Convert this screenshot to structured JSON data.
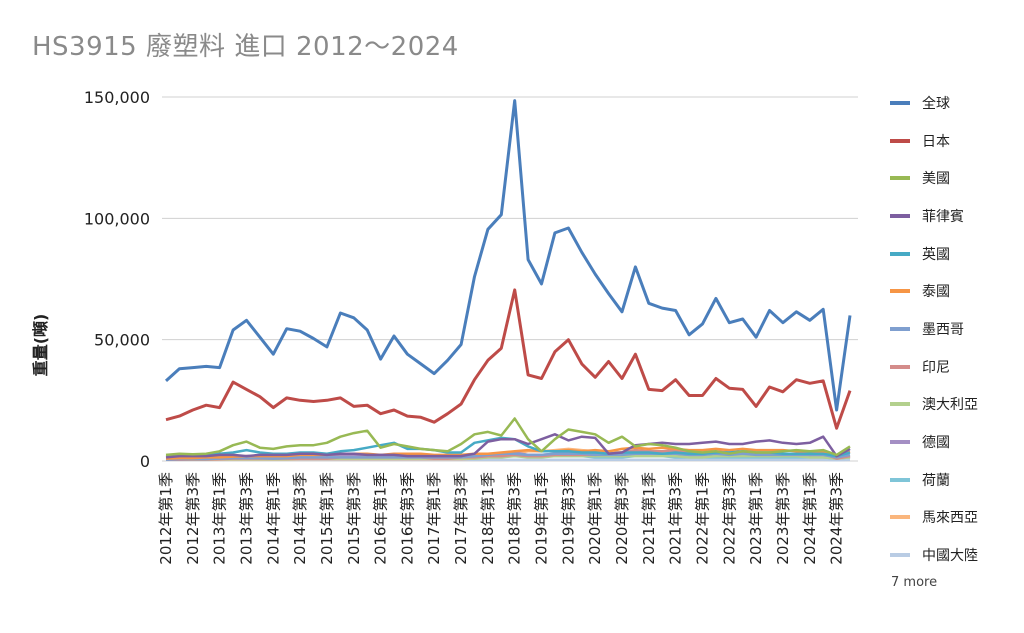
{
  "chart_data": {
    "type": "line",
    "title": "HS3915 廢塑料 進口 2012～2024",
    "ylabel": "重量(噸)",
    "xlabel": "",
    "ylim": [
      0,
      150000
    ],
    "yticks": [
      "0",
      "50,000",
      "100,000",
      "150,000"
    ],
    "ytick_values": [
      0,
      50000,
      100000,
      150000
    ],
    "grid": true,
    "legend_position": "right",
    "more_label": "7 more",
    "x": [
      "2012年第1季",
      "2012年第2季",
      "2012年第3季",
      "2012年第4季",
      "2013年第1季",
      "2013年第2季",
      "2013年第3季",
      "2013年第4季",
      "2014年第1季",
      "2014年第2季",
      "2014年第3季",
      "2014年第4季",
      "2015年第1季",
      "2015年第2季",
      "2015年第3季",
      "2015年第4季",
      "2016年第1季",
      "2016年第2季",
      "2016年第3季",
      "2016年第4季",
      "2017年第1季",
      "2017年第2季",
      "2017年第3季",
      "2017年第4季",
      "2018年第1季",
      "2018年第2季",
      "2018年第3季",
      "2018年第4季",
      "2019年第1季",
      "2019年第2季",
      "2019年第3季",
      "2019年第4季",
      "2020年第1季",
      "2020年第2季",
      "2020年第3季",
      "2020年第4季",
      "2021年第1季",
      "2021年第2季",
      "2021年第3季",
      "2021年第4季",
      "2022年第1季",
      "2022年第2季",
      "2022年第3季",
      "2022年第4季",
      "2023年第1季",
      "2023年第2季",
      "2023年第3季",
      "2023年第4季",
      "2024年第1季",
      "2024年第2季",
      "2024年第3季",
      "2024年第4季"
    ],
    "tick_labels": [
      "2012年第1季",
      "2012年第3季",
      "2013年第1季",
      "2013年第3季",
      "2014年第1季",
      "2014年第3季",
      "2015年第1季",
      "2015年第3季",
      "2016年第1季",
      "2016年第3季",
      "2017年第1季",
      "2017年第3季",
      "2018年第1季",
      "2018年第3季",
      "2019年第1季",
      "2019年第3季",
      "2020年第1季",
      "2020年第3季",
      "2021年第1季",
      "2021年第3季",
      "2022年第1季",
      "2022年第3季",
      "2023年第1季",
      "2023年第3季",
      "2024年第1季",
      "2024年第3季"
    ],
    "series": [
      {
        "name": "全球",
        "color": "#4a7ebb",
        "values": [
          33000,
          38000,
          38500,
          39000,
          38500,
          54000,
          58000,
          51000,
          44000,
          54500,
          53500,
          50500,
          47000,
          61000,
          59000,
          54000,
          42000,
          51500,
          44000,
          40000,
          36000,
          41500,
          48000,
          76000,
          95500,
          101500,
          148500,
          83000,
          73000,
          94000,
          96000,
          86000,
          77000,
          69000,
          61500,
          80000,
          65000,
          63000,
          62000,
          52000,
          56500,
          67000,
          57000,
          58500,
          51000,
          62000,
          57000,
          61500,
          58000,
          62500,
          21000,
          60000
        ]
      },
      {
        "name": "日本",
        "color": "#be4b48",
        "values": [
          17000,
          18500,
          21000,
          23000,
          22000,
          32500,
          29500,
          26500,
          22000,
          26000,
          25000,
          24500,
          25000,
          26000,
          22500,
          23000,
          19500,
          21000,
          18500,
          18000,
          16000,
          19500,
          23500,
          33500,
          41500,
          46500,
          70500,
          35500,
          34000,
          45000,
          50000,
          40000,
          34500,
          41000,
          34000,
          44000,
          29500,
          29000,
          33500,
          27000,
          27000,
          34000,
          30000,
          29500,
          22500,
          30500,
          28500,
          33500,
          32000,
          33000,
          13500,
          29000
        ]
      },
      {
        "name": "美國",
        "color": "#98b954",
        "values": [
          2500,
          3000,
          2800,
          3000,
          4000,
          6500,
          8000,
          5500,
          5000,
          6000,
          6500,
          6500,
          7500,
          10000,
          11500,
          12500,
          5500,
          7000,
          6000,
          5000,
          4500,
          4000,
          7000,
          11000,
          12000,
          10500,
          17500,
          9000,
          4000,
          9000,
          13000,
          12000,
          11000,
          7500,
          10000,
          6000,
          7000,
          6500,
          5500,
          4000,
          3500,
          4000,
          3000,
          4000,
          3500,
          3500,
          4000,
          4500,
          4000,
          4500,
          2500,
          6000
        ]
      },
      {
        "name": "菲律賓",
        "color": "#7d5fa0",
        "values": [
          1500,
          2000,
          2000,
          2000,
          2500,
          2500,
          2000,
          2500,
          2500,
          2500,
          3000,
          3000,
          2500,
          3000,
          3000,
          2500,
          2500,
          2500,
          2000,
          2000,
          2000,
          2000,
          2000,
          3000,
          8000,
          9000,
          9000,
          7000,
          9000,
          11000,
          8500,
          10000,
          9500,
          3000,
          3500,
          6500,
          7000,
          7500,
          7000,
          7000,
          7500,
          8000,
          7000,
          7000,
          8000,
          8500,
          7500,
          7000,
          7500,
          10000,
          2000,
          5000
        ]
      },
      {
        "name": "英國",
        "color": "#46aac5",
        "values": [
          2000,
          2500,
          2500,
          2500,
          3000,
          3500,
          4500,
          3500,
          3000,
          3000,
          3500,
          3500,
          3000,
          4000,
          4500,
          5500,
          6500,
          7500,
          5000,
          5000,
          4500,
          3500,
          3500,
          7500,
          8500,
          9500,
          9000,
          6000,
          4000,
          4000,
          4000,
          3500,
          3500,
          3000,
          3500,
          3500,
          3500,
          3000,
          3500,
          3000,
          3000,
          3500,
          3500,
          4000,
          3500,
          3500,
          3000,
          3000,
          3000,
          3000,
          2000,
          3500
        ]
      },
      {
        "name": "泰國",
        "color": "#f69545",
        "values": [
          1000,
          1200,
          1200,
          1500,
          1500,
          1800,
          2000,
          2000,
          2000,
          2000,
          2500,
          2500,
          2500,
          3000,
          3000,
          3000,
          2500,
          3000,
          3000,
          3000,
          2500,
          2500,
          2500,
          3000,
          3000,
          3500,
          4000,
          4500,
          4000,
          4000,
          4500,
          4000,
          4500,
          4000,
          5000,
          5500,
          5000,
          5500,
          5000,
          4500,
          4500,
          5000,
          4500,
          5000,
          4500,
          4500,
          4500,
          4000,
          4000,
          4000,
          2000,
          4000
        ]
      },
      {
        "name": "墨西哥",
        "color": "#7f9fcf",
        "values": [
          500,
          800,
          800,
          800,
          1000,
          1200,
          1200,
          1200,
          1000,
          1200,
          1500,
          1500,
          1500,
          1500,
          1500,
          1500,
          1500,
          1500,
          1500,
          1500,
          1500,
          1500,
          1500,
          2000,
          2500,
          3000,
          3000,
          2500,
          2500,
          3000,
          3000,
          3000,
          2500,
          2500,
          2500,
          3000,
          3000,
          3000,
          3000,
          2500,
          2500,
          3000,
          2500,
          3000,
          2500,
          2500,
          2500,
          2500,
          2500,
          2500,
          1500,
          2500
        ]
      },
      {
        "name": "印尼",
        "color": "#d48c8a",
        "values": [
          500,
          500,
          600,
          600,
          800,
          1000,
          1000,
          1000,
          1000,
          1000,
          1000,
          1000,
          1000,
          1500,
          1500,
          1500,
          1500,
          1500,
          1500,
          1500,
          1000,
          1000,
          1500,
          1500,
          2000,
          2000,
          2500,
          2000,
          2000,
          2500,
          2500,
          2500,
          2500,
          3000,
          3500,
          4500,
          4000,
          4000,
          4500,
          3500,
          3500,
          4000,
          3500,
          3500,
          3000,
          3000,
          3000,
          3000,
          2500,
          3000,
          1000,
          2000
        ]
      },
      {
        "name": "澳大利亞",
        "color": "#b3d08d",
        "values": [
          500,
          500,
          600,
          600,
          700,
          800,
          800,
          800,
          800,
          800,
          1000,
          1000,
          1000,
          1000,
          1000,
          1000,
          1000,
          1000,
          1000,
          1000,
          1000,
          1000,
          1000,
          1000,
          1500,
          1500,
          2000,
          1500,
          1500,
          2000,
          2000,
          2000,
          2000,
          2000,
          2000,
          2000,
          2000,
          2000,
          2000,
          1500,
          1500,
          2000,
          2000,
          2000,
          2000,
          2000,
          2000,
          2000,
          1500,
          1500,
          1000,
          1500
        ]
      },
      {
        "name": "德國",
        "color": "#a48fc4",
        "values": [
          1000,
          1200,
          1200,
          1200,
          1500,
          1500,
          2000,
          2000,
          2000,
          2000,
          2500,
          2500,
          2500,
          2500,
          2500,
          2500,
          2000,
          2500,
          2000,
          2000,
          2000,
          2000,
          2000,
          2500,
          3000,
          3000,
          3500,
          2500,
          2500,
          3000,
          3000,
          3000,
          2500,
          2500,
          2500,
          3000,
          3000,
          3000,
          2500,
          2500,
          2500,
          3000,
          2500,
          2500,
          2500,
          2500,
          2500,
          2500,
          2000,
          2500,
          1000,
          2000
        ]
      },
      {
        "name": "荷蘭",
        "color": "#7fc5d8",
        "values": [
          1500,
          1500,
          1500,
          1500,
          1500,
          1500,
          2000,
          2000,
          1500,
          1500,
          1500,
          1500,
          1500,
          1500,
          1500,
          1500,
          1500,
          1500,
          1500,
          1500,
          1500,
          1500,
          1500,
          2000,
          2500,
          2500,
          2500,
          2000,
          2000,
          2000,
          2000,
          2000,
          1500,
          1500,
          1500,
          2000,
          2000,
          2000,
          1500,
          1500,
          1500,
          1500,
          1500,
          1500,
          1500,
          1500,
          1500,
          1500,
          1500,
          1500,
          1000,
          1500
        ]
      },
      {
        "name": "馬來西亞",
        "color": "#fab67d",
        "values": [
          500,
          500,
          500,
          500,
          600,
          600,
          600,
          600,
          600,
          600,
          800,
          800,
          800,
          800,
          800,
          800,
          800,
          800,
          800,
          800,
          800,
          800,
          800,
          1000,
          1500,
          2000,
          3000,
          4000,
          4000,
          4500,
          5000,
          4500,
          4000,
          4000,
          3500,
          4000,
          3500,
          3500,
          3500,
          3000,
          3000,
          3000,
          3000,
          3000,
          3000,
          3000,
          3000,
          3000,
          2500,
          2500,
          1000,
          2000
        ]
      },
      {
        "name": "中國大陸",
        "color": "#b9cce4",
        "values": [
          500,
          500,
          500,
          500,
          500,
          500,
          500,
          500,
          500,
          500,
          500,
          500,
          500,
          500,
          500,
          500,
          500,
          500,
          500,
          500,
          500,
          500,
          500,
          500,
          500,
          500,
          500,
          500,
          500,
          500,
          500,
          500,
          500,
          500,
          500,
          500,
          500,
          500,
          500,
          500,
          500,
          500,
          500,
          500,
          500,
          500,
          500,
          500,
          500,
          500,
          300,
          500
        ]
      }
    ]
  }
}
